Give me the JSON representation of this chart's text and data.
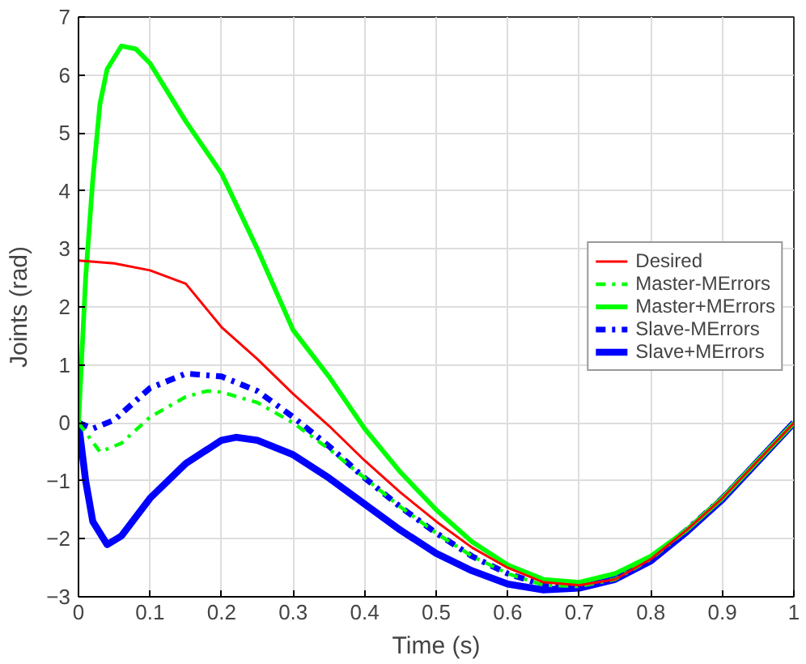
{
  "chart_data": {
    "type": "line",
    "xlabel": "Time (s)",
    "ylabel": "Joints (rad)",
    "xlim": [
      0,
      1
    ],
    "ylim": [
      -3,
      7
    ],
    "xticks": [
      0,
      0.1,
      0.2,
      0.3,
      0.4,
      0.5,
      0.6,
      0.7,
      0.8,
      0.9,
      1
    ],
    "yticks": [
      -3,
      -2,
      -1,
      0,
      1,
      2,
      3,
      4,
      5,
      6,
      7
    ],
    "grid": true,
    "legend": "right",
    "series": [
      {
        "name": "Desired",
        "color": "#ff0000",
        "line_style": "solid",
        "x": [
          0,
          0.05,
          0.1,
          0.15,
          0.2,
          0.25,
          0.3,
          0.35,
          0.4,
          0.45,
          0.5,
          0.55,
          0.6,
          0.65,
          0.7,
          0.75,
          0.8,
          0.85,
          0.9,
          0.95,
          1
        ],
        "values": [
          2.8,
          2.75,
          2.63,
          2.4,
          1.65,
          1.1,
          0.5,
          -0.05,
          -0.65,
          -1.2,
          -1.7,
          -2.15,
          -2.5,
          -2.75,
          -2.8,
          -2.7,
          -2.35,
          -1.85,
          -1.3,
          -0.65,
          0
        ]
      },
      {
        "name": "Master-MErrors",
        "color": "#00ff00",
        "line_style": "dashdot",
        "x": [
          0,
          0.03,
          0.06,
          0.1,
          0.15,
          0.18,
          0.2,
          0.25,
          0.3,
          0.35,
          0.4,
          0.45,
          0.5,
          0.55,
          0.6,
          0.65,
          0.7,
          0.75,
          0.8,
          0.85,
          0.9,
          0.95,
          1
        ],
        "values": [
          0,
          -0.5,
          -0.35,
          0.1,
          0.45,
          0.55,
          0.53,
          0.35,
          0,
          -0.45,
          -0.95,
          -1.45,
          -1.9,
          -2.3,
          -2.6,
          -2.8,
          -2.82,
          -2.7,
          -2.35,
          -1.85,
          -1.3,
          -0.65,
          0
        ]
      },
      {
        "name": "Master+MErrors",
        "color": "#00ff00",
        "line_style": "solid",
        "x": [
          0,
          0.01,
          0.02,
          0.03,
          0.04,
          0.06,
          0.08,
          0.1,
          0.15,
          0.2,
          0.25,
          0.3,
          0.35,
          0.4,
          0.45,
          0.5,
          0.55,
          0.6,
          0.65,
          0.7,
          0.75,
          0.8,
          0.85,
          0.9,
          0.95,
          1
        ],
        "values": [
          0,
          2.5,
          4.2,
          5.5,
          6.1,
          6.5,
          6.45,
          6.2,
          5.2,
          4.3,
          3.0,
          1.6,
          0.8,
          -0.1,
          -0.85,
          -1.5,
          -2.05,
          -2.45,
          -2.7,
          -2.75,
          -2.6,
          -2.3,
          -1.85,
          -1.3,
          -0.65,
          0
        ]
      },
      {
        "name": "Slave-MErrors",
        "color": "#0000ff",
        "line_style": "dashdot",
        "x": [
          0,
          0.02,
          0.05,
          0.1,
          0.15,
          0.2,
          0.25,
          0.3,
          0.35,
          0.4,
          0.45,
          0.5,
          0.55,
          0.6,
          0.65,
          0.7,
          0.75,
          0.8,
          0.85,
          0.9,
          0.95,
          1
        ],
        "values": [
          0,
          -0.1,
          0.05,
          0.6,
          0.85,
          0.8,
          0.55,
          0.1,
          -0.4,
          -0.95,
          -1.45,
          -1.9,
          -2.3,
          -2.6,
          -2.8,
          -2.83,
          -2.7,
          -2.36,
          -1.85,
          -1.3,
          -0.65,
          0
        ]
      },
      {
        "name": "Slave+MErrors",
        "color": "#0000ff",
        "line_style": "solid",
        "x": [
          0,
          0.01,
          0.02,
          0.04,
          0.06,
          0.1,
          0.15,
          0.2,
          0.22,
          0.25,
          0.3,
          0.35,
          0.4,
          0.45,
          0.5,
          0.55,
          0.6,
          0.65,
          0.7,
          0.75,
          0.8,
          0.85,
          0.9,
          0.95,
          1
        ],
        "values": [
          0,
          -1.0,
          -1.7,
          -2.1,
          -1.95,
          -1.3,
          -0.7,
          -0.3,
          -0.25,
          -0.3,
          -0.55,
          -0.95,
          -1.4,
          -1.85,
          -2.25,
          -2.55,
          -2.78,
          -2.88,
          -2.85,
          -2.7,
          -2.38,
          -1.88,
          -1.32,
          -0.66,
          0
        ]
      }
    ]
  }
}
